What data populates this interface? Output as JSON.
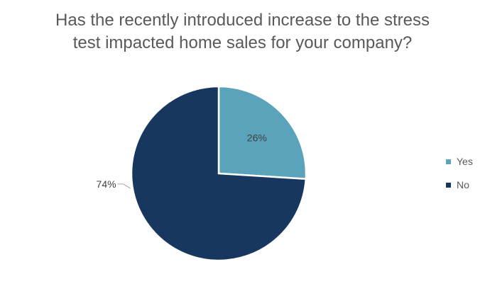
{
  "chart_data": {
    "type": "pie",
    "title_lines": [
      "Has the recently introduced increase to the stress",
      "test impacted home sales for your company?"
    ],
    "categories": [
      "Yes",
      "No"
    ],
    "values": [
      26,
      74
    ],
    "data_labels": [
      "26%",
      "74%"
    ],
    "colors": [
      "#5BA3BA",
      "#17375E"
    ],
    "legend_position": "right"
  }
}
